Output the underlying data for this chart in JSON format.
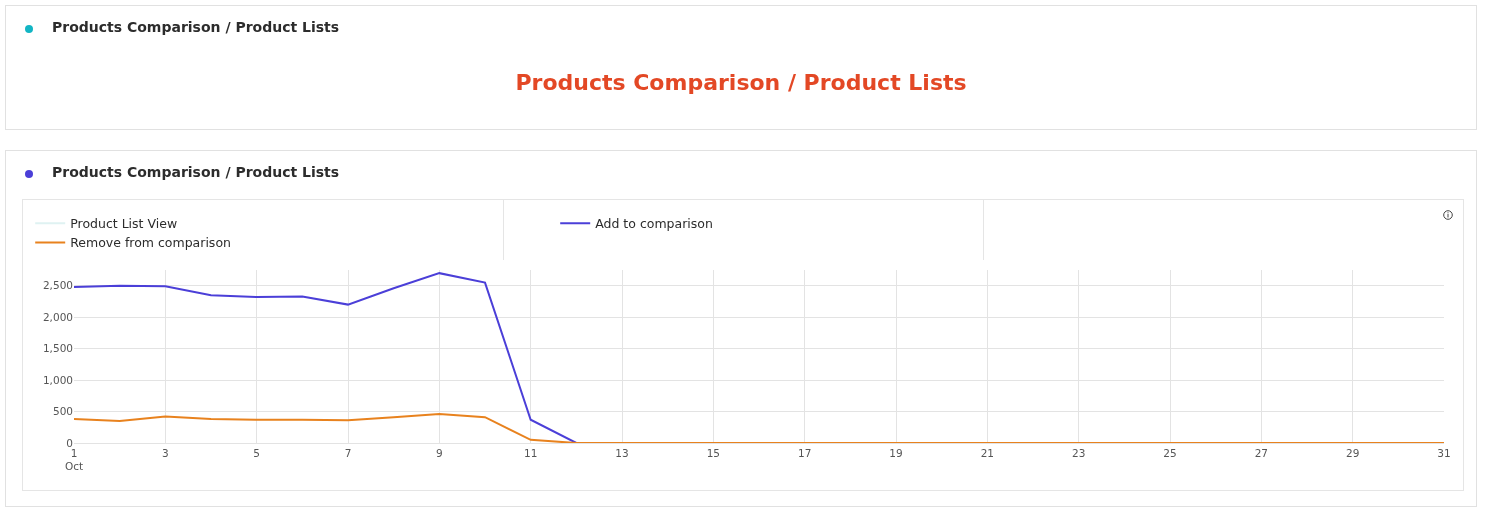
{
  "chart_data": [
    {
      "type": "other",
      "title": "Products Comparison / Product Lists",
      "annotations": [
        "Products Comparison / Product Lists"
      ]
    },
    {
      "type": "line",
      "title": "Products Comparison / Product Lists",
      "x": [
        1,
        2,
        3,
        4,
        5,
        6,
        7,
        8,
        9,
        10,
        11,
        12,
        13,
        14,
        15,
        16,
        17,
        18,
        19,
        20,
        21,
        22,
        23,
        24,
        25,
        26,
        27,
        28,
        29,
        30,
        31
      ],
      "series": [
        {
          "name": "Product List View",
          "color": "#dff2f2",
          "values": [
            null,
            null,
            null,
            null,
            null,
            null,
            null,
            null,
            null,
            null,
            null,
            null,
            null,
            null,
            null,
            null,
            null,
            null,
            null,
            null,
            null,
            null,
            null,
            null,
            null,
            null,
            null,
            null,
            null,
            null,
            null
          ]
        },
        {
          "name": "Add to comparison",
          "color": "#4b3fd8",
          "values": [
            2480,
            2500,
            2490,
            2350,
            2320,
            2330,
            2200,
            2460,
            2700,
            2550,
            370,
            0,
            null,
            null,
            null,
            null,
            null,
            null,
            null,
            null,
            null,
            null,
            null,
            null,
            null,
            null,
            null,
            null,
            null,
            null,
            null
          ]
        },
        {
          "name": "Remove from comparison",
          "color": "#e8821e",
          "values": [
            380,
            350,
            420,
            380,
            370,
            370,
            360,
            410,
            460,
            410,
            50,
            0,
            0,
            0,
            0,
            0,
            0,
            0,
            0,
            0,
            0,
            0,
            0,
            0,
            0,
            0,
            0,
            0,
            0,
            0,
            0
          ]
        }
      ],
      "xlim": [
        1,
        31
      ],
      "xticks": [
        {
          "value": 1,
          "label": "1\nOct"
        },
        3,
        5,
        7,
        9,
        11,
        13,
        15,
        17,
        19,
        21,
        23,
        25,
        27,
        29,
        31
      ],
      "ylim": [
        0,
        2750
      ],
      "yticks": [
        {
          "value": 0,
          "label": "0"
        },
        {
          "value": 500,
          "label": "500"
        },
        {
          "value": 1000,
          "label": "1,000"
        },
        {
          "value": 1500,
          "label": "1,500"
        },
        {
          "value": 2000,
          "label": "2,000"
        },
        {
          "value": 2500,
          "label": "2,500"
        }
      ],
      "grid": true,
      "legend": "top",
      "marker": "none",
      "line_style": "solid"
    }
  ]
}
